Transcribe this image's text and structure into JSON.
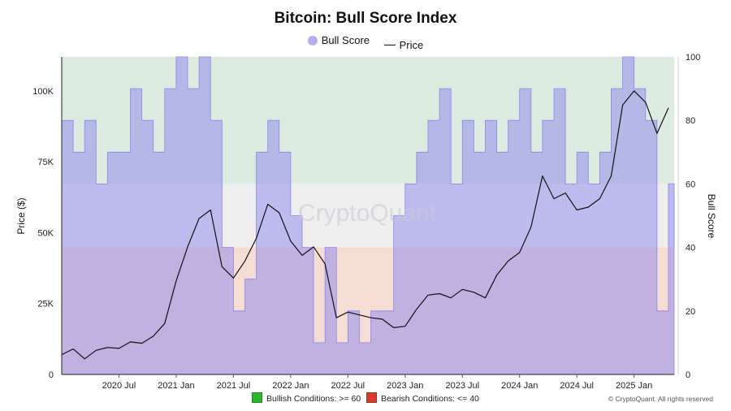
{
  "chart_data": {
    "type": "area",
    "title": "Bitcoin: Bull Score Index",
    "legend": [
      {
        "label": "Bull Score",
        "color": "#b4aef0"
      },
      {
        "label": "Price",
        "color": "#111111"
      }
    ],
    "y_left": {
      "label": "Price ($)",
      "ticks": [
        "0",
        "25K",
        "50K",
        "75K",
        "100K"
      ],
      "tick_values": [
        0,
        25000,
        50000,
        75000,
        100000
      ],
      "range": [
        0,
        112000
      ]
    },
    "y_right": {
      "label": "Bull Score",
      "ticks": [
        "0",
        "20",
        "40",
        "60",
        "80",
        "100"
      ],
      "tick_values": [
        0,
        20,
        40,
        60,
        80,
        100
      ],
      "range": [
        0,
        100
      ]
    },
    "x_ticks": [
      "2020 Jul",
      "2021 Jan",
      "2021 Jul",
      "2022 Jan",
      "2022 Jul",
      "2023 Jan",
      "2023 Jul",
      "2024 Jan",
      "2024 Jul",
      "2025 Jan"
    ],
    "x_tick_values": [
      2020.5,
      2021.0,
      2021.5,
      2022.0,
      2022.5,
      2023.0,
      2023.5,
      2024.0,
      2024.5,
      2025.0
    ],
    "x_range": [
      2020.0,
      2025.35
    ],
    "zones": [
      {
        "from": 0,
        "to": 40,
        "color": "#f5ddd3"
      },
      {
        "from": 40,
        "to": 60,
        "color": "#eeeeee"
      },
      {
        "from": 60,
        "to": 100,
        "color": "#dcebdf"
      }
    ],
    "series": [
      {
        "name": "Bull Score",
        "x": [
          2020.0,
          2020.1,
          2020.2,
          2020.3,
          2020.4,
          2020.5,
          2020.6,
          2020.7,
          2020.8,
          2020.9,
          2021.0,
          2021.1,
          2021.2,
          2021.3,
          2021.4,
          2021.5,
          2021.6,
          2021.7,
          2021.8,
          2021.9,
          2022.0,
          2022.1,
          2022.2,
          2022.3,
          2022.4,
          2022.5,
          2022.6,
          2022.7,
          2022.8,
          2022.9,
          2023.0,
          2023.1,
          2023.2,
          2023.3,
          2023.4,
          2023.5,
          2023.6,
          2023.7,
          2023.8,
          2023.9,
          2024.0,
          2024.1,
          2024.2,
          2024.3,
          2024.4,
          2024.5,
          2024.6,
          2024.7,
          2024.8,
          2024.9,
          2025.0,
          2025.1,
          2025.2,
          2025.3
        ],
        "values": [
          80,
          70,
          80,
          60,
          70,
          70,
          90,
          80,
          70,
          90,
          100,
          90,
          100,
          80,
          40,
          20,
          30,
          70,
          80,
          70,
          50,
          40,
          10,
          40,
          10,
          20,
          10,
          20,
          20,
          50,
          60,
          70,
          80,
          90,
          60,
          80,
          70,
          80,
          70,
          80,
          90,
          70,
          80,
          90,
          60,
          70,
          60,
          70,
          90,
          100,
          90,
          80,
          20,
          60
        ]
      },
      {
        "name": "Price",
        "x": [
          2020.0,
          2020.1,
          2020.2,
          2020.3,
          2020.4,
          2020.5,
          2020.6,
          2020.7,
          2020.8,
          2020.9,
          2021.0,
          2021.1,
          2021.2,
          2021.3,
          2021.4,
          2021.5,
          2021.6,
          2021.7,
          2021.8,
          2021.9,
          2022.0,
          2022.1,
          2022.2,
          2022.3,
          2022.4,
          2022.5,
          2022.6,
          2022.7,
          2022.8,
          2022.9,
          2023.0,
          2023.1,
          2023.2,
          2023.3,
          2023.4,
          2023.5,
          2023.6,
          2023.7,
          2023.8,
          2023.9,
          2024.0,
          2024.1,
          2024.2,
          2024.3,
          2024.4,
          2024.5,
          2024.6,
          2024.7,
          2024.8,
          2024.9,
          2025.0,
          2025.1,
          2025.2,
          2025.3
        ],
        "values": [
          7000,
          9000,
          5500,
          8500,
          9500,
          9200,
          11500,
          11000,
          13500,
          18000,
          33000,
          45000,
          55000,
          58000,
          38000,
          34000,
          40000,
          48000,
          60000,
          57000,
          47000,
          42000,
          45000,
          39000,
          20000,
          22000,
          21000,
          20000,
          19500,
          16500,
          17000,
          23000,
          28000,
          28500,
          27000,
          30000,
          29000,
          27000,
          35000,
          40000,
          43000,
          52000,
          70000,
          62000,
          64000,
          58000,
          59000,
          62000,
          70000,
          95000,
          100000,
          96000,
          85000,
          94000
        ]
      }
    ],
    "watermark": "CryptoQuant",
    "footer_legend": [
      {
        "label": "Bullish Conditions: >= 60",
        "color": "#2db52d"
      },
      {
        "label": "Bearish Conditions: <= 40",
        "color": "#d93a2b"
      }
    ],
    "copyright": "© CryptoQuant. All rights reserved"
  }
}
